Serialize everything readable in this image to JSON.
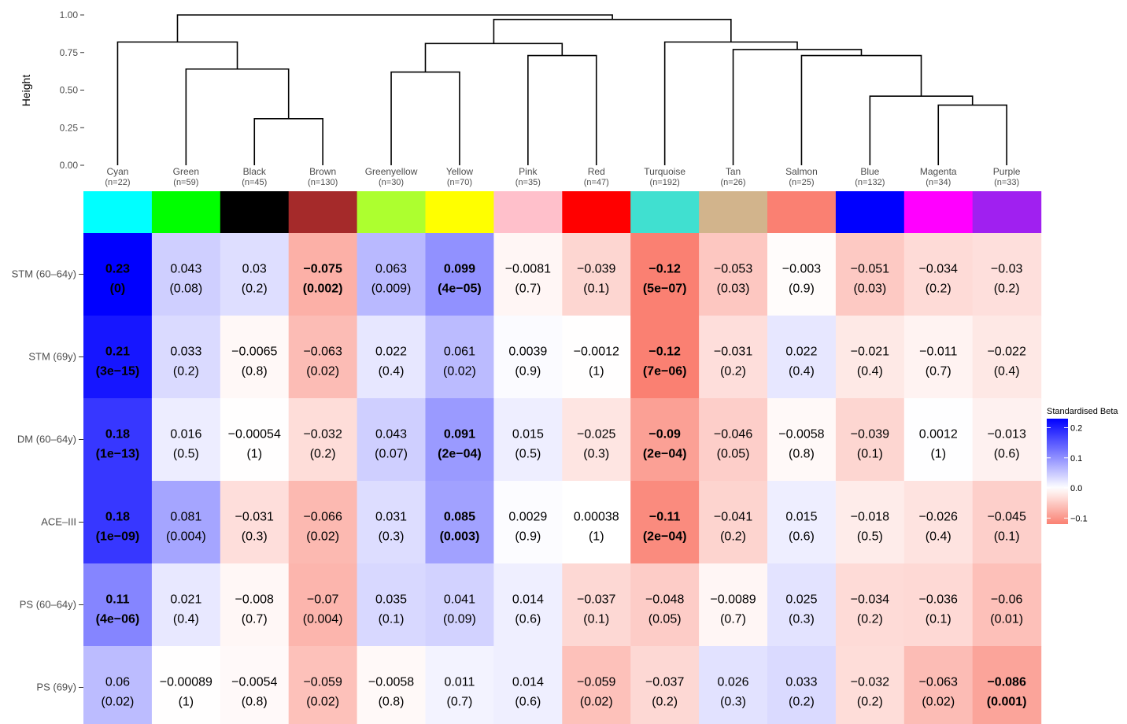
{
  "chart_data": {
    "type": "heatmap",
    "title": "",
    "dendrogram": {
      "ylabel": "Height",
      "ylim": [
        0,
        1.0
      ],
      "yticks": [
        "0.00",
        "0.25",
        "0.50",
        "0.75",
        "1.00"
      ],
      "merges": [
        {
          "left": 2,
          "right": 3,
          "height": 0.31
        },
        {
          "left": 1,
          "right": -1,
          "height": 0.64
        },
        {
          "left": 0,
          "right": -2,
          "height": 0.82
        },
        {
          "left": 4,
          "right": 5,
          "height": 0.62
        },
        {
          "left": 6,
          "right": 7,
          "height": 0.73
        },
        {
          "left": -4,
          "right": -5,
          "height": 0.81
        },
        {
          "left": 12,
          "right": 13,
          "height": 0.4
        },
        {
          "left": 11,
          "right": -7,
          "height": 0.46
        },
        {
          "left": 10,
          "right": -8,
          "height": 0.73
        },
        {
          "left": 9,
          "right": -9,
          "height": 0.77
        },
        {
          "left": 8,
          "right": -10,
          "height": 0.82
        },
        {
          "left": -6,
          "right": -11,
          "height": 0.97
        },
        {
          "left": -3,
          "right": -12,
          "height": 1.0
        }
      ]
    },
    "modules": [
      {
        "name": "Cyan",
        "n": "(n=22)",
        "color": "#00FFFF"
      },
      {
        "name": "Green",
        "n": "(n=59)",
        "color": "#00FF00"
      },
      {
        "name": "Black",
        "n": "(n=45)",
        "color": "#000000"
      },
      {
        "name": "Brown",
        "n": "(n=130)",
        "color": "#A52A2A"
      },
      {
        "name": "Greenyellow",
        "n": "(n=30)",
        "color": "#ADFF2F"
      },
      {
        "name": "Yellow",
        "n": "(n=70)",
        "color": "#FFFF00"
      },
      {
        "name": "Pink",
        "n": "(n=35)",
        "color": "#FFC0CB"
      },
      {
        "name": "Red",
        "n": "(n=47)",
        "color": "#FF0000"
      },
      {
        "name": "Turquoise",
        "n": "(n=192)",
        "color": "#40E0D0"
      },
      {
        "name": "Tan",
        "n": "(n=26)",
        "color": "#D2B48C"
      },
      {
        "name": "Salmon",
        "n": "(n=25)",
        "color": "#FA8072"
      },
      {
        "name": "Blue",
        "n": "(n=132)",
        "color": "#0000FF"
      },
      {
        "name": "Magenta",
        "n": "(n=34)",
        "color": "#FF00FF"
      },
      {
        "name": "Purple",
        "n": "(n=33)",
        "color": "#A020F0"
      }
    ],
    "rows": [
      "STM (60–64y)",
      "STM (69y)",
      "DM (60–64y)",
      "ACE–III",
      "PS (60–64y)",
      "PS (69y)"
    ],
    "values": [
      [
        0.23,
        0.043,
        0.03,
        -0.075,
        0.063,
        0.099,
        -0.0081,
        -0.039,
        -0.12,
        -0.053,
        -0.003,
        -0.051,
        -0.034,
        -0.03
      ],
      [
        0.21,
        0.033,
        -0.0065,
        -0.063,
        0.022,
        0.061,
        0.0039,
        -0.0012,
        -0.12,
        -0.031,
        0.022,
        -0.021,
        -0.011,
        -0.022
      ],
      [
        0.18,
        0.016,
        -0.00054,
        -0.032,
        0.043,
        0.091,
        0.015,
        -0.025,
        -0.09,
        -0.046,
        -0.0058,
        -0.039,
        0.0012,
        -0.013
      ],
      [
        0.18,
        0.081,
        -0.031,
        -0.066,
        0.031,
        0.085,
        0.0029,
        0.00038,
        -0.11,
        -0.041,
        0.015,
        -0.018,
        -0.026,
        -0.045
      ],
      [
        0.11,
        0.021,
        -0.008,
        -0.07,
        0.035,
        0.041,
        0.014,
        -0.037,
        -0.048,
        -0.0089,
        0.025,
        -0.034,
        -0.036,
        -0.06
      ],
      [
        0.06,
        -0.00089,
        -0.0054,
        -0.059,
        -0.0058,
        0.011,
        0.014,
        -0.059,
        -0.037,
        0.026,
        0.033,
        -0.032,
        -0.063,
        -0.086
      ]
    ],
    "pvalues": [
      [
        "(0)",
        "(0.08)",
        "(0.2)",
        "(0.002)",
        "(0.009)",
        "(4e−05)",
        "(0.7)",
        "(0.1)",
        "(5e−07)",
        "(0.03)",
        "(0.9)",
        "(0.03)",
        "(0.2)",
        "(0.2)"
      ],
      [
        "(3e−15)",
        "(0.2)",
        "(0.8)",
        "(0.02)",
        "(0.4)",
        "(0.02)",
        "(0.9)",
        "(1)",
        "(7e−06)",
        "(0.2)",
        "(0.4)",
        "(0.4)",
        "(0.7)",
        "(0.4)"
      ],
      [
        "(1e−13)",
        "(0.5)",
        "(1)",
        "(0.2)",
        "(0.07)",
        "(2e−04)",
        "(0.5)",
        "(0.3)",
        "(2e−04)",
        "(0.05)",
        "(0.8)",
        "(0.1)",
        "(1)",
        "(0.6)"
      ],
      [
        "(1e−09)",
        "(0.004)",
        "(0.3)",
        "(0.02)",
        "(0.3)",
        "(0.003)",
        "(0.9)",
        "(1)",
        "(2e−04)",
        "(0.2)",
        "(0.6)",
        "(0.5)",
        "(0.4)",
        "(0.1)"
      ],
      [
        "(4e−06)",
        "(0.4)",
        "(0.7)",
        "(0.004)",
        "(0.1)",
        "(0.09)",
        "(0.6)",
        "(0.1)",
        "(0.05)",
        "(0.7)",
        "(0.3)",
        "(0.2)",
        "(0.1)",
        "(0.01)"
      ],
      [
        "(0.02)",
        "(1)",
        "(0.8)",
        "(0.02)",
        "(0.8)",
        "(0.7)",
        "(0.6)",
        "(0.02)",
        "(0.2)",
        "(0.3)",
        "(0.2)",
        "(0.2)",
        "(0.02)",
        "(0.001)"
      ]
    ],
    "bold": [
      [
        true,
        false,
        false,
        true,
        false,
        true,
        false,
        false,
        true,
        false,
        false,
        false,
        false,
        false
      ],
      [
        true,
        false,
        false,
        false,
        false,
        false,
        false,
        false,
        true,
        false,
        false,
        false,
        false,
        false
      ],
      [
        true,
        false,
        false,
        false,
        false,
        true,
        false,
        false,
        true,
        false,
        false,
        false,
        false,
        false
      ],
      [
        true,
        false,
        false,
        false,
        false,
        true,
        false,
        false,
        true,
        false,
        false,
        false,
        false,
        false
      ],
      [
        true,
        false,
        false,
        false,
        false,
        false,
        false,
        false,
        false,
        false,
        false,
        false,
        false,
        false
      ],
      [
        false,
        false,
        false,
        false,
        false,
        false,
        false,
        false,
        false,
        false,
        false,
        false,
        false,
        true
      ]
    ],
    "legend": {
      "title": "Standardised Beta",
      "placement": "right",
      "ticks": [
        {
          "value": 0.2,
          "label": "0.2"
        },
        {
          "value": 0.1,
          "label": "0.1"
        },
        {
          "value": 0.0,
          "label": "0.0"
        },
        {
          "value": -0.1,
          "label": "−0.1"
        }
      ],
      "range": [
        -0.12,
        0.23
      ],
      "colors": {
        "low": "#FA8072",
        "mid": "#FFFFFF",
        "high": "#0000FF"
      }
    }
  }
}
